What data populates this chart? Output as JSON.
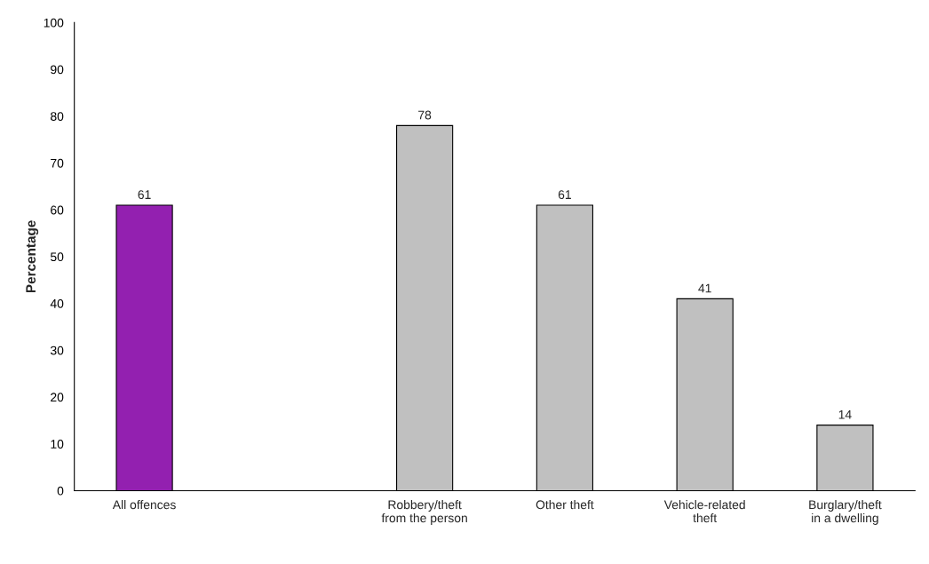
{
  "chart_data": {
    "type": "bar",
    "ylabel": "Percentage",
    "categories": [
      "All offences",
      null,
      "Robbery/theft from the person",
      "Other theft",
      "Vehicle-related theft",
      "Burglary/theft in a dwelling"
    ],
    "values": [
      61,
      null,
      78,
      61,
      41,
      14
    ],
    "colors": [
      "#9320b0",
      null,
      "#c0c0c0",
      "#c0c0c0",
      "#c0c0c0",
      "#c0c0c0"
    ],
    "ylim": [
      0,
      100
    ],
    "yticks": [
      0,
      10,
      20,
      30,
      40,
      50,
      60,
      70,
      80,
      90,
      100
    ],
    "data_labels": true,
    "grid": false,
    "legend": false
  }
}
